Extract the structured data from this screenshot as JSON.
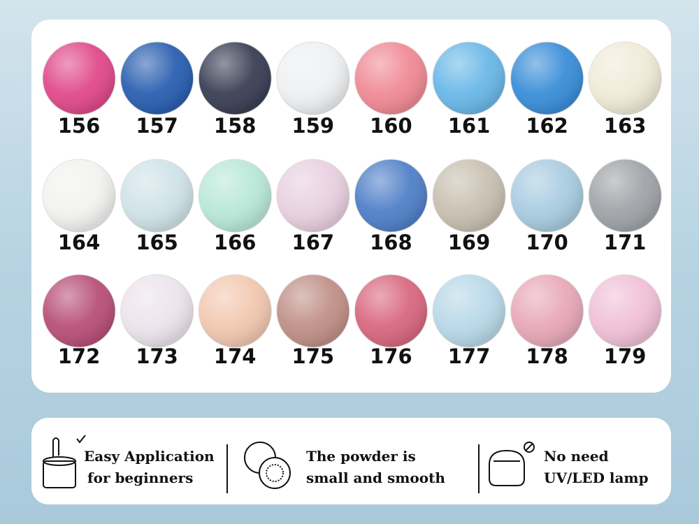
{
  "swatches": [
    {
      "label": "156",
      "color": "#e04a8a"
    },
    {
      "label": "157",
      "color": "#2a5fb0"
    },
    {
      "label": "158",
      "color": "#3a3f55"
    },
    {
      "label": "159",
      "color": "#eef0f2"
    },
    {
      "label": "160",
      "color": "#f08a95"
    },
    {
      "label": "161",
      "color": "#6ab8e8"
    },
    {
      "label": "162",
      "color": "#3a8ed8"
    },
    {
      "label": "163",
      "color": "#f0ebd8"
    },
    {
      "label": "164",
      "color": "#f2f2f0"
    },
    {
      "label": "165",
      "color": "#cfe3e8"
    },
    {
      "label": "166",
      "color": "#b8e8d8"
    },
    {
      "label": "167",
      "color": "#e8d0e0"
    },
    {
      "label": "168",
      "color": "#5080c8"
    },
    {
      "label": "169",
      "color": "#c8c0b0"
    },
    {
      "label": "170",
      "color": "#a8cce0"
    },
    {
      "label": "171",
      "color": "#a0a4a8"
    },
    {
      "label": "172",
      "color": "#b85078"
    },
    {
      "label": "173",
      "color": "#ece4ec"
    },
    {
      "label": "174",
      "color": "#f2c8b0"
    },
    {
      "label": "175",
      "color": "#c09088"
    },
    {
      "label": "176",
      "color": "#d86880"
    },
    {
      "label": "177",
      "color": "#b8d8e8"
    },
    {
      "label": "178",
      "color": "#e8a8b8"
    },
    {
      "label": "179",
      "color": "#f0c0d8"
    }
  ],
  "features": [
    {
      "lines": [
        "Easy Application",
        "for beginners"
      ]
    },
    {
      "lines": [
        "The powder is",
        "small and smooth"
      ]
    },
    {
      "lines": [
        "No need",
        "UV/LED lamp"
      ]
    }
  ]
}
